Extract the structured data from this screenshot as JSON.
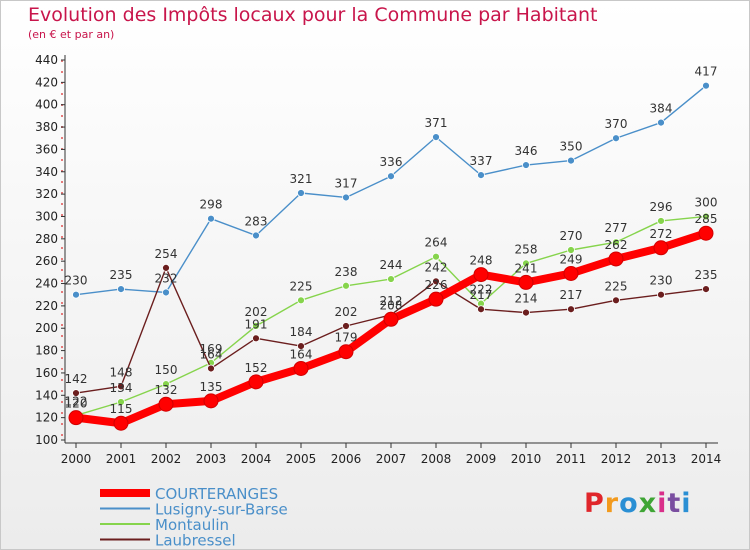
{
  "header": {
    "title": "Evolution des Impôts locaux pour la Commune par Habitant",
    "subtitle": "(en € et par an)"
  },
  "logo": {
    "text": "Proxiti",
    "colors": [
      "#e0262b",
      "#f29a1d",
      "#2a8fd4",
      "#3fa535",
      "#d92f8a",
      "#7a4ea0",
      "#2a8fd4"
    ]
  },
  "chart_data": {
    "type": "line",
    "x": [
      2000,
      2001,
      2002,
      2003,
      2004,
      2005,
      2006,
      2007,
      2008,
      2009,
      2010,
      2011,
      2012,
      2013,
      2014
    ],
    "ylim": [
      100,
      440
    ],
    "yticks": [
      100,
      120,
      140,
      160,
      180,
      200,
      220,
      240,
      260,
      280,
      300,
      320,
      340,
      360,
      380,
      400,
      420,
      440
    ],
    "grid": false,
    "legend_position": "bottom-left",
    "series": [
      {
        "name": "COURTERANGES",
        "color": "#ff0000",
        "values": [
          120,
          115,
          132,
          135,
          152,
          164,
          179,
          208,
          226,
          248,
          241,
          249,
          262,
          272,
          285
        ]
      },
      {
        "name": "Lusigny-sur-Barse",
        "color": "#4a8fc9",
        "values": [
          230,
          235,
          232,
          298,
          283,
          321,
          317,
          336,
          371,
          337,
          346,
          350,
          370,
          384,
          417
        ]
      },
      {
        "name": "Montaulin",
        "color": "#86d44c",
        "values": [
          122,
          134,
          150,
          169,
          202,
          225,
          238,
          244,
          264,
          222,
          258,
          270,
          277,
          296,
          300
        ]
      },
      {
        "name": "Laubressel",
        "color": "#6b1e1e",
        "values": [
          142,
          148,
          254,
          164,
          191,
          184,
          202,
          212,
          242,
          217,
          214,
          217,
          225,
          230,
          235
        ]
      }
    ]
  }
}
